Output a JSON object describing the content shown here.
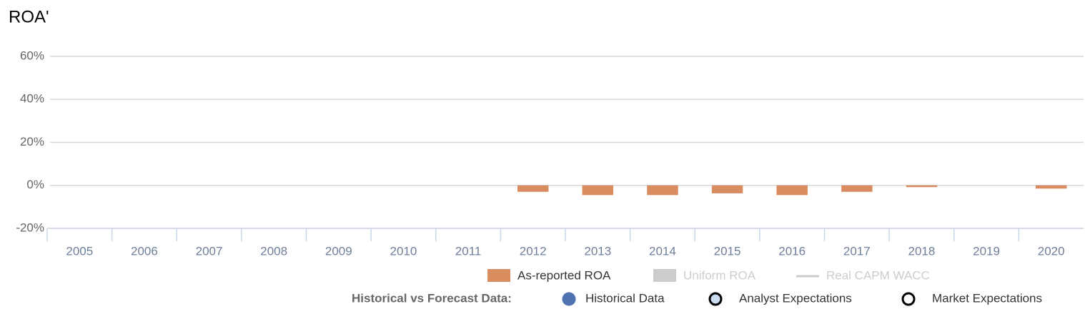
{
  "chart_data": {
    "type": "bar",
    "title": "ROA'",
    "categories": [
      "2005",
      "2006",
      "2007",
      "2008",
      "2009",
      "2010",
      "2011",
      "2012",
      "2013",
      "2014",
      "2015",
      "2016",
      "2017",
      "2018",
      "2019",
      "2020"
    ],
    "series": [
      {
        "name": "As-reported ROA",
        "color": "#d98c5f",
        "values": [
          null,
          null,
          null,
          null,
          null,
          null,
          null,
          -3,
          -4.5,
          -4.5,
          -3.7,
          -4.5,
          -3,
          -0.8,
          null,
          -1.5
        ]
      }
    ],
    "inactive_legend": [
      {
        "name": "Uniform ROA",
        "color": "#cccccc"
      },
      {
        "name": "Real CAPM WACC",
        "color": "#cccccc"
      }
    ],
    "forecast_legend": {
      "title": "Historical vs Forecast Data:",
      "items": [
        {
          "name": "Historical Data",
          "color": "#4f73b0"
        },
        {
          "name": "Analyst Expectations",
          "color": "#c9dcf2"
        },
        {
          "name": "Market Expectations",
          "color": "#ffffff"
        }
      ]
    },
    "ylim": [
      -20,
      60
    ],
    "yticks": [
      {
        "value": -20,
        "label": "-20%"
      },
      {
        "value": 0,
        "label": "0%"
      },
      {
        "value": 20,
        "label": "20%"
      },
      {
        "value": 40,
        "label": "40%"
      },
      {
        "value": 60,
        "label": "60%"
      }
    ],
    "grid": true
  }
}
